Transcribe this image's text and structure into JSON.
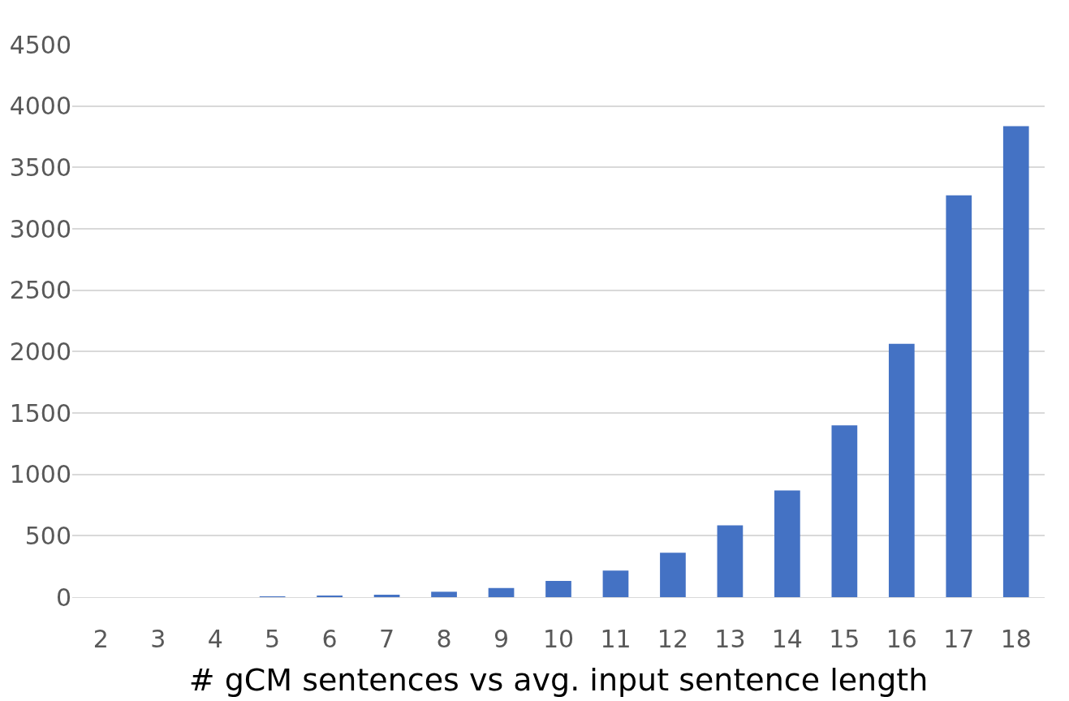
{
  "chart_data": {
    "type": "bar",
    "xlabel": "# gCM sentences vs avg. input sentence length",
    "categories": [
      "2",
      "3",
      "4",
      "5",
      "6",
      "7",
      "8",
      "9",
      "10",
      "11",
      "12",
      "13",
      "14",
      "15",
      "16",
      "17",
      "18"
    ],
    "values": [
      0,
      0,
      0,
      5,
      12,
      20,
      44,
      74,
      132,
      216,
      362,
      584,
      869,
      1400,
      2064,
      3272,
      3836
    ],
    "color": "#4472c4",
    "ylim": [
      0,
      4500
    ],
    "yticks": [
      0,
      500,
      1000,
      1500,
      2000,
      2500,
      3000,
      3500,
      4000,
      4500
    ],
    "grid": "y"
  }
}
